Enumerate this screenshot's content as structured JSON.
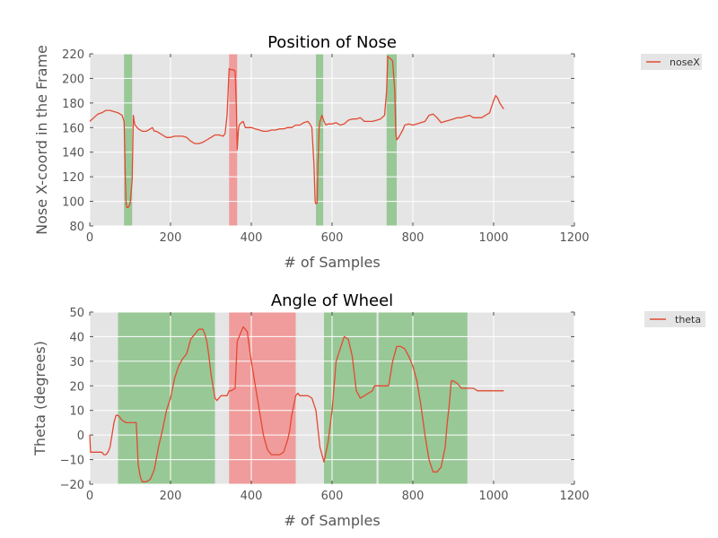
{
  "chart_data": [
    {
      "type": "line",
      "title": "Position of Nose",
      "xlabel": "# of Samples",
      "ylabel": "Nose X-coord in the Frame",
      "xlim": [
        0,
        1200
      ],
      "ylim": [
        80,
        220
      ],
      "xticks": [
        0,
        200,
        400,
        600,
        800,
        1000,
        1200
      ],
      "yticks": [
        80,
        100,
        120,
        140,
        160,
        180,
        200,
        220
      ],
      "grid": true,
      "legend_position": "outside-top-right",
      "colors": {
        "background": "#e5e5e5",
        "line": "#e24a33",
        "green": "#98c896",
        "red": "#f09c9c"
      },
      "shaded_regions": [
        {
          "start": 85,
          "end": 105,
          "color": "green"
        },
        {
          "start": 345,
          "end": 365,
          "color": "red"
        },
        {
          "start": 560,
          "end": 578,
          "color": "green"
        },
        {
          "start": 735,
          "end": 760,
          "color": "green"
        }
      ],
      "series": [
        {
          "name": "noseX",
          "x": [
            0,
            10,
            20,
            30,
            40,
            50,
            60,
            70,
            80,
            85,
            88,
            90,
            92,
            95,
            100,
            105,
            108,
            110,
            112,
            115,
            120,
            125,
            130,
            140,
            150,
            155,
            160,
            165,
            170,
            180,
            190,
            200,
            210,
            220,
            230,
            240,
            250,
            260,
            270,
            280,
            290,
            300,
            310,
            320,
            330,
            335,
            340,
            345,
            350,
            355,
            360,
            363,
            365,
            368,
            370,
            375,
            380,
            385,
            390,
            400,
            410,
            420,
            430,
            440,
            450,
            460,
            470,
            480,
            490,
            500,
            510,
            520,
            530,
            540,
            545,
            550,
            555,
            558,
            560,
            563,
            565,
            568,
            570,
            575,
            580,
            585,
            590,
            600,
            610,
            620,
            630,
            640,
            650,
            660,
            670,
            680,
            685,
            690,
            700,
            710,
            720,
            730,
            735,
            738,
            740,
            745,
            750,
            755,
            758,
            760,
            765,
            770,
            775,
            780,
            790,
            800,
            810,
            820,
            830,
            840,
            850,
            860,
            870,
            880,
            890,
            900,
            910,
            920,
            930,
            940,
            950,
            960,
            970,
            980,
            990,
            1000,
            1005,
            1010,
            1015,
            1025
          ],
          "y": [
            165,
            168,
            171,
            172,
            174,
            174,
            173,
            172,
            170,
            165,
            120,
            98,
            95,
            95,
            98,
            118,
            170,
            165,
            162,
            161,
            159,
            158,
            157,
            157,
            159,
            160,
            157,
            157,
            156,
            154,
            152,
            152,
            153,
            153,
            153,
            152,
            149,
            147,
            147,
            148,
            150,
            152,
            154,
            154,
            153,
            155,
            170,
            208,
            207,
            207,
            206,
            175,
            142,
            158,
            162,
            164,
            165,
            160,
            160,
            160,
            159,
            158,
            157,
            157,
            158,
            158,
            159,
            159,
            160,
            160,
            162,
            162,
            164,
            165,
            163,
            160,
            130,
            100,
            98,
            99,
            130,
            160,
            165,
            170,
            165,
            162,
            163,
            163,
            164,
            162,
            163,
            166,
            167,
            167,
            168,
            165,
            165,
            165,
            165,
            166,
            167,
            170,
            190,
            218,
            217,
            216,
            214,
            190,
            155,
            150,
            152,
            155,
            158,
            162,
            163,
            162,
            163,
            164,
            165,
            170,
            171,
            168,
            164,
            165,
            166,
            167,
            168,
            168,
            169,
            170,
            168,
            168,
            168,
            170,
            172,
            182,
            186,
            184,
            180,
            175
          ]
        }
      ]
    },
    {
      "type": "line",
      "title": "Angle of Wheel",
      "xlabel": "# of Samples",
      "ylabel": "Theta (degrees)",
      "xlim": [
        0,
        1200
      ],
      "ylim": [
        -20,
        50
      ],
      "xticks": [
        0,
        200,
        400,
        600,
        800,
        1000,
        1200
      ],
      "yticks": [
        -20,
        -10,
        0,
        10,
        20,
        30,
        40,
        50
      ],
      "grid": true,
      "legend_position": "outside-top-right",
      "colors": {
        "background": "#e5e5e5",
        "line": "#e24a33",
        "green": "#98c896",
        "red": "#f09c9c"
      },
      "shaded_regions": [
        {
          "start": 70,
          "end": 310,
          "color": "green"
        },
        {
          "start": 345,
          "end": 510,
          "color": "red"
        },
        {
          "start": 580,
          "end": 710,
          "color": "green"
        },
        {
          "start": 715,
          "end": 935,
          "color": "green"
        }
      ],
      "series": [
        {
          "name": "theta",
          "x": [
            0,
            2,
            5,
            20,
            30,
            35,
            40,
            45,
            50,
            55,
            60,
            65,
            70,
            75,
            80,
            90,
            100,
            110,
            115,
            118,
            120,
            125,
            130,
            140,
            150,
            160,
            170,
            180,
            190,
            200,
            210,
            220,
            230,
            240,
            250,
            260,
            270,
            280,
            285,
            290,
            295,
            300,
            305,
            310,
            315,
            320,
            325,
            330,
            335,
            340,
            345,
            350,
            360,
            365,
            370,
            380,
            390,
            400,
            410,
            420,
            430,
            440,
            450,
            460,
            470,
            480,
            490,
            495,
            500,
            505,
            510,
            515,
            520,
            525,
            530,
            535,
            540,
            550,
            560,
            570,
            580,
            590,
            600,
            610,
            620,
            630,
            640,
            650,
            660,
            670,
            680,
            690,
            700,
            705,
            710,
            720,
            730,
            740,
            750,
            760,
            770,
            780,
            790,
            800,
            810,
            820,
            830,
            840,
            850,
            860,
            870,
            880,
            885,
            890,
            895,
            900,
            910,
            920,
            930,
            935,
            940,
            945,
            950,
            960,
            1000,
            1025
          ],
          "y": [
            0,
            -7,
            -7,
            -7,
            -7,
            -8,
            -8,
            -7,
            -5,
            0,
            5,
            8,
            8,
            7,
            6,
            5,
            5,
            5,
            5,
            -5,
            -12,
            -17,
            -19,
            -19,
            -18,
            -14,
            -5,
            2,
            10,
            15,
            23,
            28,
            31,
            33,
            39,
            41,
            43,
            43,
            41,
            38,
            32,
            25,
            20,
            15,
            14,
            15,
            16,
            16,
            16,
            16,
            18,
            18,
            19,
            38,
            40,
            44,
            42,
            30,
            20,
            10,
            0,
            -6,
            -8,
            -8,
            -8,
            -7,
            -2,
            2,
            8,
            12,
            16,
            17,
            16,
            16,
            16,
            16,
            16,
            15,
            10,
            -5,
            -11,
            -3,
            10,
            30,
            35,
            40,
            39,
            32,
            18,
            15,
            16,
            17,
            18,
            20,
            20,
            20,
            20,
            20,
            30,
            36,
            36,
            35,
            32,
            28,
            22,
            12,
            0,
            -10,
            -15,
            -15,
            -13,
            -5,
            5,
            12,
            22,
            22,
            21,
            19,
            19,
            19,
            19,
            19,
            19,
            18,
            18,
            18
          ]
        }
      ]
    }
  ]
}
